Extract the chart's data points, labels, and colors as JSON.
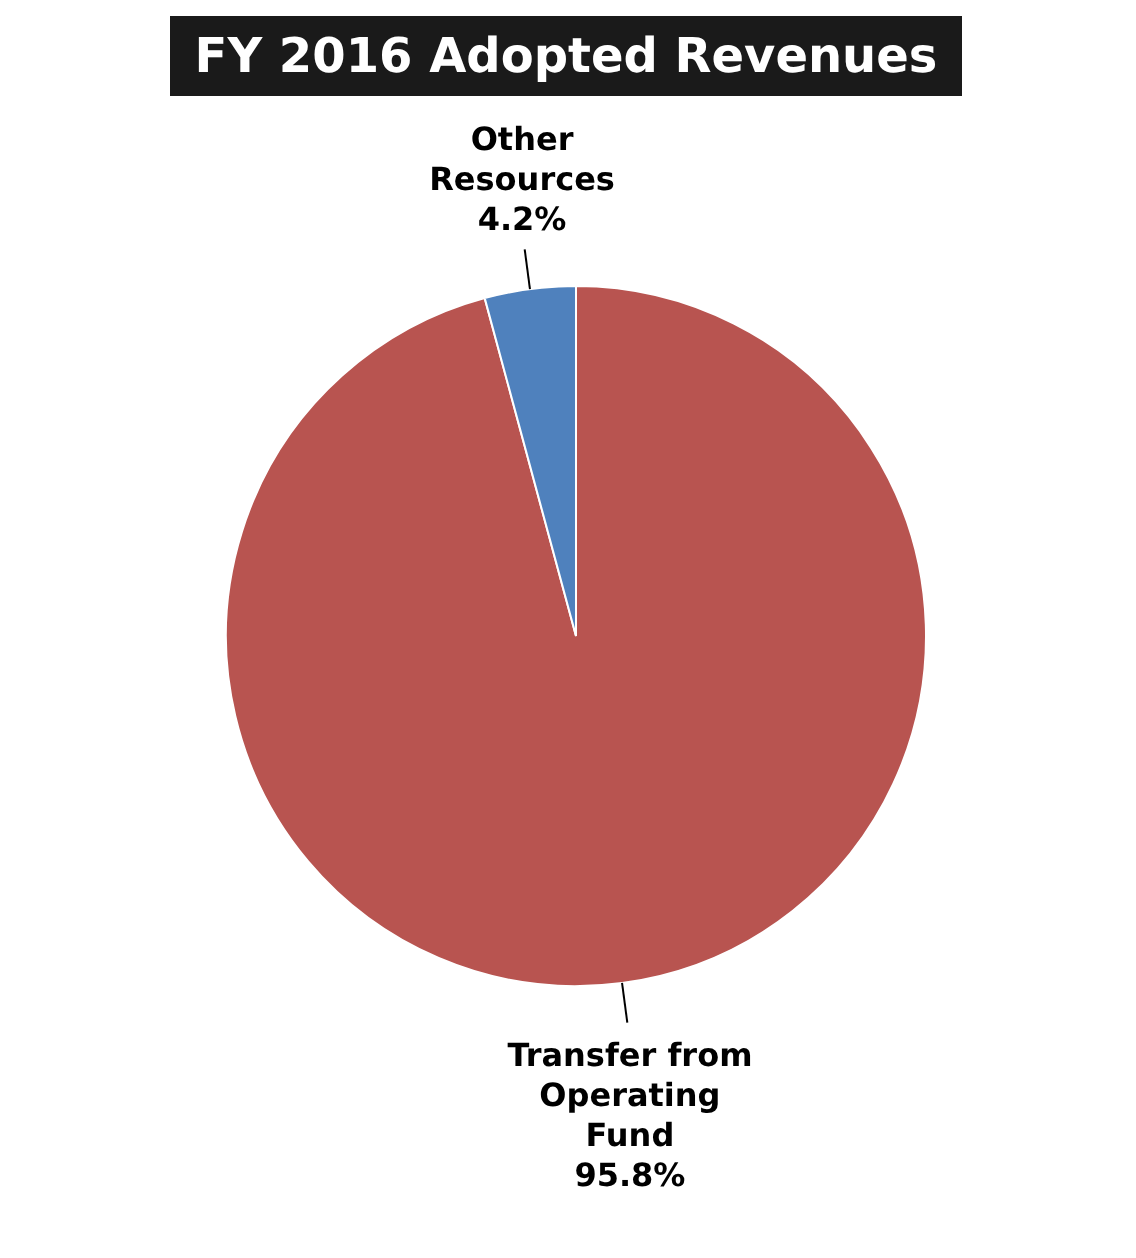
{
  "chart_data": {
    "type": "pie",
    "title": "FY 2016 Adopted Revenues",
    "categories": [
      "Transfer from Operating Fund",
      "Other Resources"
    ],
    "values": [
      95.8,
      4.2
    ],
    "value_labels": [
      "95.8%",
      "4.2%"
    ],
    "colors": [
      "#b85450",
      "#4f81bd"
    ],
    "legend": false
  }
}
